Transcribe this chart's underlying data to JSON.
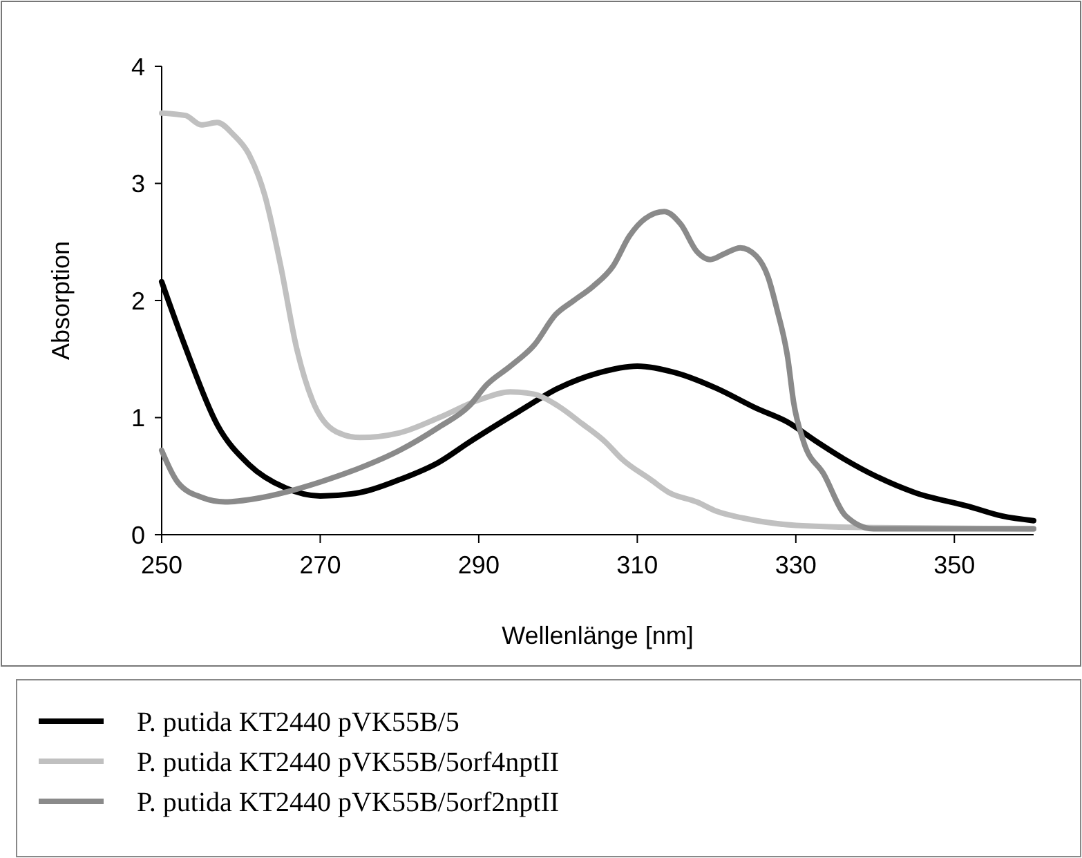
{
  "chart_data": {
    "type": "line",
    "xlabel": "Wellenlänge [nm]",
    "ylabel": "Absorption",
    "xlim": [
      250,
      360
    ],
    "xticks": [
      250,
      270,
      290,
      310,
      330,
      350
    ],
    "ylim": [
      0,
      4
    ],
    "yticks": [
      0,
      1,
      2,
      3,
      4
    ],
    "grid": false,
    "legend": "bottom",
    "line_style": "solid",
    "marker": "none",
    "series": [
      {
        "name": "P. putida KT2440 pVK55B/5",
        "color": "#000000",
        "x": [
          250,
          253,
          257,
          261,
          265.6,
          270,
          275,
          280,
          285,
          288.8,
          295,
          300,
          305,
          310,
          315,
          320,
          325,
          329,
          332.5,
          336,
          340.4,
          345,
          351.9,
          356,
          360
        ],
        "values": [
          2.16,
          1.6,
          0.94,
          0.6,
          0.4,
          0.33,
          0.36,
          0.47,
          0.62,
          0.79,
          1.05,
          1.25,
          1.38,
          1.44,
          1.38,
          1.25,
          1.08,
          0.96,
          0.8,
          0.65,
          0.49,
          0.36,
          0.24,
          0.16,
          0.12
        ]
      },
      {
        "name": "P. putida KT2440 pVK55B/5orf4nptII",
        "color": "#c0c0c0",
        "x": [
          250,
          253,
          255,
          257,
          259,
          261,
          263,
          265,
          267,
          269,
          272,
          275,
          280,
          285,
          290,
          294,
          297,
          300,
          303,
          306,
          308,
          311.7,
          314,
          317.5,
          320,
          323.5,
          330,
          340,
          360
        ],
        "values": [
          3.6,
          3.58,
          3.5,
          3.52,
          3.42,
          3.25,
          2.9,
          2.3,
          1.6,
          1.15,
          0.88,
          0.83,
          0.87,
          1.0,
          1.15,
          1.22,
          1.2,
          1.1,
          0.95,
          0.79,
          0.65,
          0.47,
          0.36,
          0.28,
          0.2,
          0.14,
          0.08,
          0.06,
          0.05
        ]
      },
      {
        "name": "P. putida KT2440 pVK55B/5orf2nptII",
        "color": "#8a8a8a",
        "x": [
          250,
          252,
          255,
          258,
          262,
          266,
          270,
          275,
          280,
          285,
          288.8,
          291,
          294,
          297,
          299.7,
          302,
          304.4,
          307,
          309,
          311,
          313.4,
          315.5,
          317.5,
          319.2,
          321,
          323,
          325,
          326.5,
          327.6,
          329,
          329.7,
          331,
          333.5,
          336.3,
          339.8,
          345,
          360
        ],
        "values": [
          0.72,
          0.45,
          0.32,
          0.28,
          0.31,
          0.37,
          0.45,
          0.57,
          0.72,
          0.92,
          1.1,
          1.28,
          1.44,
          1.62,
          1.88,
          2.0,
          2.12,
          2.3,
          2.55,
          2.7,
          2.76,
          2.65,
          2.42,
          2.35,
          2.4,
          2.45,
          2.38,
          2.2,
          1.93,
          1.5,
          1.14,
          0.79,
          0.52,
          0.16,
          0.05,
          0.05,
          0.05
        ]
      }
    ]
  }
}
